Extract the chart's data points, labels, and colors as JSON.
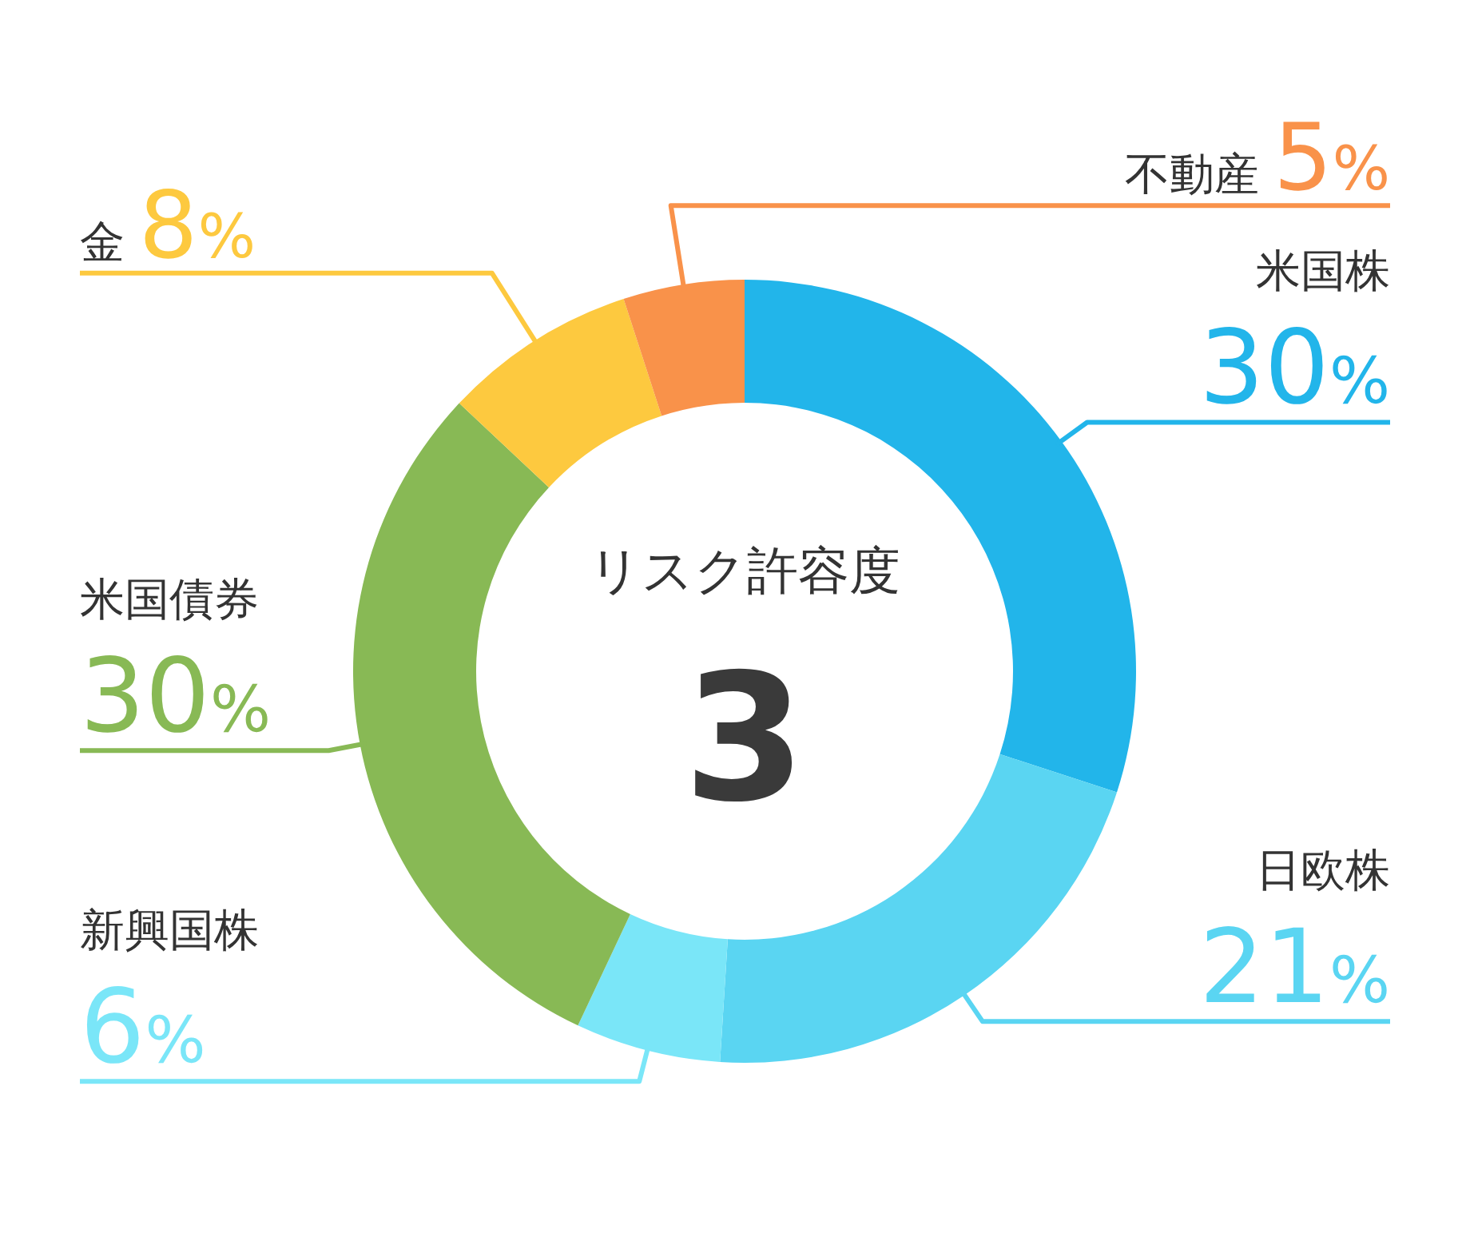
{
  "chart_data": {
    "type": "donut",
    "title": "リスク許容度",
    "subtitle": "3",
    "categories": [
      "米国株",
      "日欧株",
      "新興国株",
      "米国債券",
      "金",
      "不動産"
    ],
    "values": [
      30,
      21,
      6,
      30,
      8,
      5
    ],
    "colors": [
      "#22b5ea",
      "#5ad5f2",
      "#7ae6f8",
      "#88b955",
      "#fdc93f",
      "#f9924a"
    ],
    "value_labels": [
      "30%",
      "21%",
      "6%",
      "30%",
      "8%",
      "5%"
    ]
  }
}
